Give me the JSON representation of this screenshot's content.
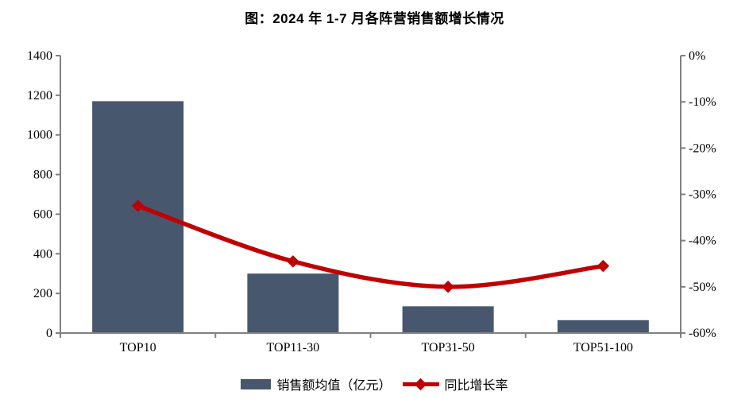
{
  "title": "图：2024 年 1-7 月各阵营销售额增长情况",
  "legend": {
    "bar_label": "销售额均值（亿元）",
    "line_label": "同比增长率"
  },
  "colors": {
    "bar": "#47586E",
    "line": "#C00000",
    "axis": "#808080",
    "text": "#000000",
    "background": "#FFFFFF"
  },
  "chart_data": {
    "type": "bar",
    "subtype": "combo-bar-line-dual-axis",
    "title": "图：2024 年 1-7 月各阵营销售额增长情况",
    "categories": [
      "TOP10",
      "TOP11-30",
      "TOP31-50",
      "TOP51-100"
    ],
    "series": [
      {
        "name": "销售额均值（亿元）",
        "type": "bar",
        "axis": "left",
        "values": [
          1170,
          300,
          135,
          65
        ]
      },
      {
        "name": "同比增长率",
        "type": "line",
        "axis": "right",
        "values": [
          -32.5,
          -44.5,
          -50,
          -45.5
        ]
      }
    ],
    "left_axis": {
      "min": 0,
      "max": 1400,
      "step": 200,
      "tick_labels": [
        "0",
        "200",
        "400",
        "600",
        "800",
        "1000",
        "1200",
        "1400"
      ]
    },
    "right_axis": {
      "min": -60,
      "max": 0,
      "step": 10,
      "tick_labels": [
        "0%",
        "-10%",
        "-20%",
        "-30%",
        "-40%",
        "-50%",
        "-60%"
      ]
    },
    "xlabel": "",
    "ylabel": "",
    "grid": false,
    "legend_position": "bottom"
  }
}
